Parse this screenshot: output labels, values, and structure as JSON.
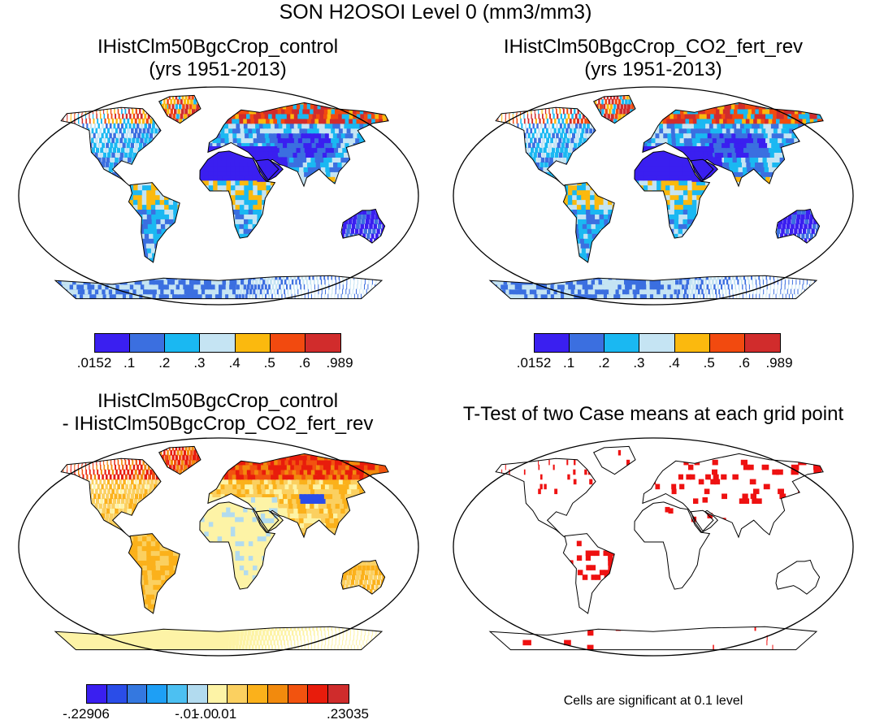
{
  "title": "SON H2OSOI Level 0 (mm3/mm3)",
  "panels": {
    "top_left": {
      "title_line1": "IHistClm50BgcCrop_control",
      "title_line2": "(yrs 1951-2013)"
    },
    "top_right": {
      "title_line1": "IHistClm50BgcCrop_CO2_fert_rev",
      "title_line2": "(yrs 1951-2013)"
    },
    "bottom_left": {
      "title_line1": "IHistClm50BgcCrop_control",
      "title_line2": "- IHistClm50BgcCrop_CO2_fert_rev"
    },
    "bottom_right": {
      "title_line1": "T-Test of two Case means at each grid point",
      "note": "Cells are significant at 0.1 level"
    }
  },
  "colorbars": {
    "absolute": {
      "colors": [
        "#3a1ff0",
        "#3b6fe0",
        "#1ab8f2",
        "#c5e4f3",
        "#fbb90e",
        "#f24a0f",
        "#d12c2c"
      ],
      "labels": [
        ".0152",
        ".1",
        ".2",
        ".3",
        ".4",
        ".5",
        ".6",
        ".989"
      ]
    },
    "difference": {
      "colors": [
        "#3a1ff0",
        "#2a4de8",
        "#3478e0",
        "#1e9ff5",
        "#4cc0f2",
        "#b2dbef",
        "#fdf3a6",
        "#fbd060",
        "#fbb11b",
        "#f28a0d",
        "#f2530f",
        "#e81c0c",
        "#cf2c2c"
      ],
      "labels": [
        "-.22906",
        "-.01",
        "-.00",
        ".01",
        ".23035"
      ]
    }
  },
  "significance_color": "#ee1111"
}
